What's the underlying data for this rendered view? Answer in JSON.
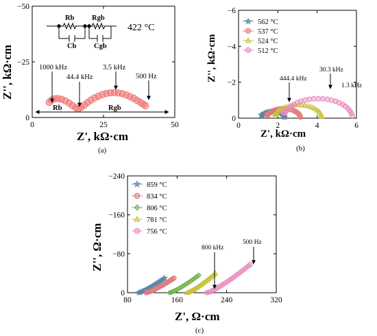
{
  "chart_data": [
    {
      "panel": "(a)",
      "type": "scatter",
      "xlabel": "Z', kΩ·cm",
      "ylabel": "Z'', kΩ·cm",
      "xlim": [
        0,
        50
      ],
      "ylim": [
        0,
        -50
      ],
      "xticks": [
        "0",
        "25",
        "50"
      ],
      "yticks": [
        "0",
        "−25",
        "−50"
      ],
      "temperature_label": "422 °C",
      "circuit_labels": [
        "Rb",
        "Cb",
        "Rgb",
        "Cgb"
      ],
      "annotations": [
        "1000 kHz",
        "44.4 kHz",
        "3.5 kHz",
        "500 Hz",
        "Rb",
        "Rgb"
      ],
      "series": [
        {
          "name": "422 °C",
          "color": "#f07878",
          "x": [
            6.0,
            6.8,
            7.8,
            9.0,
            10.3,
            11.6,
            12.9,
            14.1,
            15.2,
            16.2,
            17.2,
            18.3,
            19.4,
            20.6,
            21.9,
            23.2,
            24.6,
            26.0,
            27.4,
            28.8,
            30.2,
            31.6,
            33.0,
            34.3,
            35.6,
            36.8,
            37.9,
            38.9,
            39.7
          ],
          "y": [
            -6.8,
            -7.8,
            -8.4,
            -8.5,
            -8.2,
            -7.5,
            -6.5,
            -5.4,
            -4.4,
            -4.0,
            -4.6,
            -5.6,
            -6.7,
            -7.8,
            -8.8,
            -9.6,
            -10.3,
            -10.8,
            -11.1,
            -11.2,
            -11.0,
            -10.7,
            -10.1,
            -9.4,
            -8.6,
            -7.7,
            -6.8,
            -6.0,
            -5.3
          ]
        }
      ]
    },
    {
      "panel": "(b)",
      "type": "scatter",
      "xlabel": "Z', kΩ·cm",
      "ylabel": "Z'', kΩ·cm",
      "xlim": [
        0,
        6
      ],
      "ylim": [
        0,
        -6
      ],
      "xticks": [
        "0",
        "2",
        "4",
        "6"
      ],
      "yticks": [
        "0",
        "−2",
        "−4",
        "−6"
      ],
      "legend_position": "top-left",
      "annotations": [
        "444.4 kHz",
        "30.3 kHz",
        "1.3 kHz"
      ],
      "series": [
        {
          "name": "562 °C",
          "color": "#5b86a8",
          "marker": "star",
          "cx": 1.75,
          "r": 0.6,
          "hmin": 0.18
        },
        {
          "name": "537 °C",
          "color": "#e07b7b",
          "marker": "circle",
          "cx": 2.3,
          "r": 0.85,
          "hmin": 0.2
        },
        {
          "name": "524 °C",
          "color": "#c9c23f",
          "marker": "triangle",
          "cx": 3.05,
          "r": 1.2,
          "hmin": 0.22
        },
        {
          "name": "512 °C",
          "color": "#e889bf",
          "marker": "circle",
          "cx": 4.05,
          "r": 1.75,
          "hmin": 0.3
        }
      ]
    },
    {
      "panel": "(c)",
      "type": "scatter",
      "xlabel": "Z', Ω·cm",
      "ylabel": "Z'', Ω·cm",
      "xlim": [
        80,
        320
      ],
      "ylim": [
        0,
        -240
      ],
      "xticks": [
        "80",
        "160",
        "240",
        "320"
      ],
      "yticks": [
        "0",
        "−80",
        "−160",
        "−240"
      ],
      "legend_position": "top-left",
      "annotations": [
        "800 kHz",
        "500 Hz"
      ],
      "series": [
        {
          "name": "859 °C",
          "color": "#5b86a8",
          "marker": "star",
          "x0": 98,
          "x1": 140,
          "ymax": -30
        },
        {
          "name": "834 °C",
          "color": "#e07b7b",
          "marker": "circle",
          "x0": 110,
          "x1": 155,
          "ymax": -30
        },
        {
          "name": "806 °C",
          "color": "#6fb54b",
          "marker": "diamond",
          "x0": 148,
          "x1": 195,
          "ymax": -36
        },
        {
          "name": "781 °C",
          "color": "#c9c23f",
          "marker": "triangle",
          "x0": 176,
          "x1": 222,
          "ymax": -40
        },
        {
          "name": "756 °C",
          "color": "#e889bf",
          "marker": "circle",
          "x0": 208,
          "x1": 278,
          "ymax": -58
        }
      ]
    }
  ]
}
